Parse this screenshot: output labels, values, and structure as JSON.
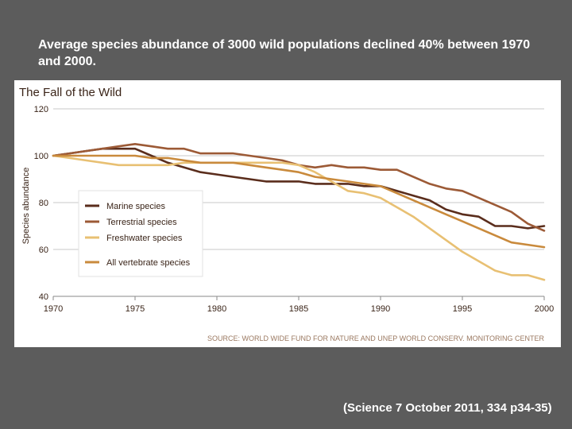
{
  "slide": {
    "title": "Average species abundance of 3000 wild populations declined 40% between 1970 and 2000.",
    "citation": "(Science 7 October 2011, 334 p34-35)"
  },
  "chart_data": {
    "type": "line",
    "title": "The Fall of the Wild",
    "ylabel": "Species abundance",
    "xlabel": "",
    "source": "SOURCE: WORLD WIDE FUND FOR NATURE AND UNEP WORLD CONSERV. MONITORING CENTER",
    "xlim": [
      1970,
      2000
    ],
    "ylim": [
      40,
      120
    ],
    "x_ticks": [
      1970,
      1975,
      1980,
      1985,
      1990,
      1995,
      2000
    ],
    "y_ticks": [
      40,
      60,
      80,
      100,
      120
    ],
    "grid": true,
    "legend_position": "center-left",
    "x": [
      1970,
      1971,
      1972,
      1973,
      1974,
      1975,
      1976,
      1977,
      1978,
      1979,
      1980,
      1981,
      1982,
      1983,
      1984,
      1985,
      1986,
      1987,
      1988,
      1989,
      1990,
      1991,
      1992,
      1993,
      1994,
      1995,
      1996,
      1997,
      1998,
      1999,
      2000
    ],
    "series": [
      {
        "name": "Marine species",
        "color": "#5a2d1c",
        "values": [
          100,
          101,
          102,
          103,
          103,
          103,
          100,
          97,
          95,
          93,
          92,
          91,
          90,
          89,
          89,
          89,
          88,
          88,
          88,
          87,
          87,
          85,
          83,
          81,
          77,
          75,
          74,
          70,
          70,
          69,
          70
        ]
      },
      {
        "name": "Terrestrial species",
        "color": "#9c5a36",
        "values": [
          100,
          101,
          102,
          103,
          104,
          105,
          104,
          103,
          103,
          101,
          101,
          101,
          100,
          99,
          98,
          96,
          95,
          96,
          95,
          95,
          94,
          94,
          91,
          88,
          86,
          85,
          82,
          79,
          76,
          71,
          68
        ]
      },
      {
        "name": "Freshwater species",
        "color": "#e8c073",
        "values": [
          100,
          99,
          98,
          97,
          96,
          96,
          96,
          96,
          97,
          97,
          97,
          97,
          97,
          97,
          97,
          96,
          93,
          89,
          85,
          84,
          82,
          78,
          74,
          69,
          64,
          59,
          55,
          51,
          49,
          49,
          47
        ]
      },
      {
        "name": "All vertebrate species",
        "color": "#c98a3c",
        "values": [
          100,
          100,
          100,
          100,
          100,
          100,
          99,
          99,
          98,
          97,
          97,
          97,
          96,
          95,
          94,
          93,
          91,
          90,
          89,
          88,
          87,
          84,
          81,
          78,
          75,
          72,
          69,
          66,
          63,
          62,
          61
        ]
      }
    ]
  }
}
